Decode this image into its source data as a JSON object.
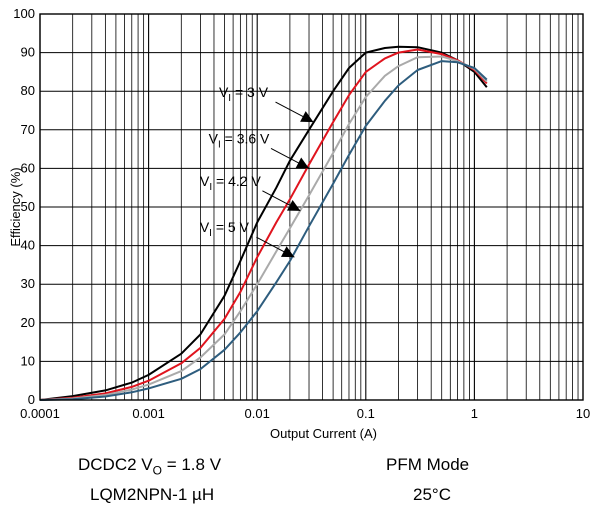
{
  "chart_data": {
    "type": "line",
    "xlabel": "Output Current (A)",
    "ylabel": "Efficiency  (%)",
    "x_scale": "log",
    "xlim": [
      0.0001,
      10
    ],
    "ylim": [
      0,
      100
    ],
    "grid": true,
    "x_ticks": [
      "0.0001",
      "0.001",
      "0.01",
      "0.1",
      "1",
      "10"
    ],
    "y_ticks": [
      "0",
      "10",
      "20",
      "30",
      "40",
      "50",
      "60",
      "70",
      "80",
      "90",
      "100"
    ],
    "series": [
      {
        "name": "VI = 3 V",
        "label_main": "V",
        "label_sub": "I",
        "label_rest": " = 3 V",
        "color": "#000000",
        "points": [
          [
            0.0001,
            0
          ],
          [
            0.0002,
            1
          ],
          [
            0.0004,
            2.5
          ],
          [
            0.0007,
            4.5
          ],
          [
            0.001,
            6.5
          ],
          [
            0.002,
            12
          ],
          [
            0.003,
            17
          ],
          [
            0.005,
            27
          ],
          [
            0.007,
            36
          ],
          [
            0.01,
            46
          ],
          [
            0.015,
            55
          ],
          [
            0.02,
            62
          ],
          [
            0.03,
            70
          ],
          [
            0.05,
            80
          ],
          [
            0.07,
            86
          ],
          [
            0.1,
            90
          ],
          [
            0.15,
            91.2
          ],
          [
            0.2,
            91.5
          ],
          [
            0.3,
            91.4
          ],
          [
            0.5,
            90
          ],
          [
            0.7,
            88
          ],
          [
            1,
            85
          ],
          [
            1.3,
            81
          ]
        ]
      },
      {
        "name": "VI = 3.6 V",
        "label_main": "V",
        "label_sub": "I",
        "label_rest": " = 3.6 V",
        "color": "#e0141e",
        "points": [
          [
            0.0001,
            0
          ],
          [
            0.0002,
            0.6
          ],
          [
            0.0004,
            1.7
          ],
          [
            0.0007,
            3.4
          ],
          [
            0.001,
            5
          ],
          [
            0.002,
            9.5
          ],
          [
            0.003,
            13.5
          ],
          [
            0.005,
            21
          ],
          [
            0.007,
            28
          ],
          [
            0.01,
            37
          ],
          [
            0.015,
            46
          ],
          [
            0.02,
            52
          ],
          [
            0.03,
            61
          ],
          [
            0.05,
            72
          ],
          [
            0.07,
            79
          ],
          [
            0.1,
            85
          ],
          [
            0.15,
            88.5
          ],
          [
            0.2,
            90
          ],
          [
            0.3,
            90.8
          ],
          [
            0.5,
            89.6
          ],
          [
            0.7,
            88
          ],
          [
            1,
            85.5
          ],
          [
            1.3,
            82
          ]
        ]
      },
      {
        "name": "VI = 4.2 V",
        "label_main": "V",
        "label_sub": "I",
        "label_rest": " = 4.2 V",
        "color": "#aaaaaa",
        "points": [
          [
            0.0001,
            0
          ],
          [
            0.0002,
            0.4
          ],
          [
            0.0004,
            1.3
          ],
          [
            0.0007,
            2.7
          ],
          [
            0.001,
            4
          ],
          [
            0.002,
            7.5
          ],
          [
            0.003,
            11
          ],
          [
            0.005,
            17
          ],
          [
            0.007,
            23
          ],
          [
            0.01,
            30
          ],
          [
            0.015,
            38.5
          ],
          [
            0.02,
            44.5
          ],
          [
            0.03,
            53
          ],
          [
            0.05,
            64
          ],
          [
            0.07,
            71.5
          ],
          [
            0.1,
            78.5
          ],
          [
            0.15,
            84
          ],
          [
            0.2,
            86.5
          ],
          [
            0.3,
            88.8
          ],
          [
            0.5,
            89
          ],
          [
            0.7,
            87.8
          ],
          [
            1,
            85.8
          ],
          [
            1.3,
            82.5
          ]
        ]
      },
      {
        "name": "VI = 5 V",
        "label_main": "V",
        "label_sub": "I",
        "label_rest": " = 5 V",
        "color": "#2e5d7e",
        "points": [
          [
            0.0001,
            0
          ],
          [
            0.0002,
            0.2
          ],
          [
            0.0004,
            0.9
          ],
          [
            0.0007,
            2
          ],
          [
            0.001,
            3
          ],
          [
            0.002,
            5.5
          ],
          [
            0.003,
            8
          ],
          [
            0.005,
            13
          ],
          [
            0.007,
            17.5
          ],
          [
            0.01,
            23
          ],
          [
            0.015,
            30.5
          ],
          [
            0.02,
            36
          ],
          [
            0.03,
            45
          ],
          [
            0.05,
            56
          ],
          [
            0.07,
            63.5
          ],
          [
            0.1,
            71
          ],
          [
            0.15,
            77.5
          ],
          [
            0.2,
            81.5
          ],
          [
            0.3,
            85.5
          ],
          [
            0.5,
            87.8
          ],
          [
            0.7,
            87.5
          ],
          [
            1,
            86
          ],
          [
            1.3,
            83
          ]
        ]
      }
    ],
    "annotations": [
      {
        "series": 0,
        "arrow_x": 0.033,
        "arrow_y": 72
      },
      {
        "series": 1,
        "arrow_x": 0.03,
        "arrow_y": 60
      },
      {
        "series": 2,
        "arrow_x": 0.025,
        "arrow_y": 49
      },
      {
        "series": 3,
        "arrow_x": 0.022,
        "arrow_y": 37
      }
    ]
  },
  "caption": {
    "line1_left_main": "DCDC2 V",
    "line1_left_sub": "O",
    "line1_left_rest": " = 1.8 V",
    "line1_right": "PFM Mode",
    "line2_left": "LQM2NPN-1 µH",
    "line2_right": "25°C"
  }
}
